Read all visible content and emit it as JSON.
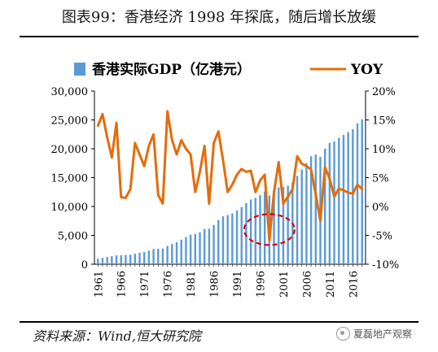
{
  "header": {
    "title": "图表99：香港经济 1998 年探底，随后增长放缓"
  },
  "footer": {
    "source": "资料来源：Wind,恒大研究院",
    "watermark": "夏磊地产观察"
  },
  "chart_data": {
    "type": "bar+line",
    "title": "",
    "legend": {
      "placement": "top",
      "entries": [
        "香港实际GDP（亿港元）",
        "YOY"
      ]
    },
    "xlabel": "",
    "ylabel": "",
    "x": [
      1961,
      1962,
      1963,
      1964,
      1965,
      1966,
      1967,
      1968,
      1969,
      1970,
      1971,
      1972,
      1973,
      1974,
      1975,
      1976,
      1977,
      1978,
      1979,
      1980,
      1981,
      1982,
      1983,
      1984,
      1985,
      1986,
      1987,
      1988,
      1989,
      1990,
      1991,
      1992,
      1993,
      1994,
      1995,
      1996,
      1997,
      1998,
      1999,
      2000,
      2001,
      2002,
      2003,
      2004,
      2005,
      2006,
      2007,
      2008,
      2009,
      2010,
      2011,
      2012,
      2013,
      2014,
      2015,
      2016,
      2017,
      2018
    ],
    "x_tick_labels": [
      "1961",
      "1966",
      "1971",
      "1976",
      "1981",
      "1986",
      "1991",
      "1996",
      "2001",
      "2006",
      "2011",
      "2016"
    ],
    "y_left": {
      "range": [
        0,
        30000
      ],
      "tick_labels": [
        "0",
        "5,000",
        "10,000",
        "15,000",
        "20,000",
        "25,000",
        "30,000"
      ]
    },
    "y_right": {
      "range": [
        -10,
        20
      ],
      "tick_labels": [
        "-10%",
        "-5%",
        "0%",
        "5%",
        "10%",
        "15%",
        "20%"
      ]
    },
    "series": [
      {
        "name": "香港实际GDP（亿港元）",
        "type": "bar",
        "axis": "left",
        "color": "#5b9bd5",
        "values": [
          950,
          1100,
          1250,
          1400,
          1530,
          1560,
          1580,
          1640,
          1820,
          1990,
          2120,
          2350,
          2650,
          2700,
          2710,
          3150,
          3500,
          3800,
          4250,
          4700,
          5100,
          5250,
          5550,
          6100,
          6150,
          6800,
          7650,
          8300,
          8500,
          8800,
          9300,
          9900,
          10600,
          11200,
          11500,
          12000,
          12600,
          11900,
          12300,
          13300,
          13400,
          13600,
          14100,
          15300,
          16400,
          17500,
          18700,
          19000,
          18600,
          20000,
          21000,
          21300,
          21900,
          22400,
          22900,
          23400,
          24400,
          25100
        ]
      },
      {
        "name": "YOY",
        "type": "line",
        "axis": "right",
        "color": "#e46c0a",
        "values": [
          14.0,
          16.0,
          12.0,
          8.5,
          14.5,
          1.6,
          1.5,
          3.0,
          11.0,
          9.0,
          7.0,
          10.5,
          12.5,
          2.0,
          0.5,
          16.5,
          11.5,
          9.0,
          11.5,
          10.0,
          9.0,
          2.5,
          6.0,
          10.5,
          0.5,
          11.0,
          13.0,
          8.0,
          2.5,
          3.8,
          5.5,
          6.5,
          6.0,
          6.2,
          2.5,
          4.5,
          5.5,
          -5.9,
          2.5,
          7.7,
          0.5,
          1.7,
          3.0,
          8.7,
          7.4,
          7.0,
          6.4,
          2.1,
          -2.5,
          6.8,
          4.8,
          1.7,
          3.1,
          2.8,
          2.4,
          2.2,
          3.8,
          3.0
        ]
      }
    ],
    "annotations": [
      {
        "type": "dashed-ellipse",
        "color": "#e00000",
        "x": 1998,
        "y_right": -4.0
      }
    ]
  }
}
